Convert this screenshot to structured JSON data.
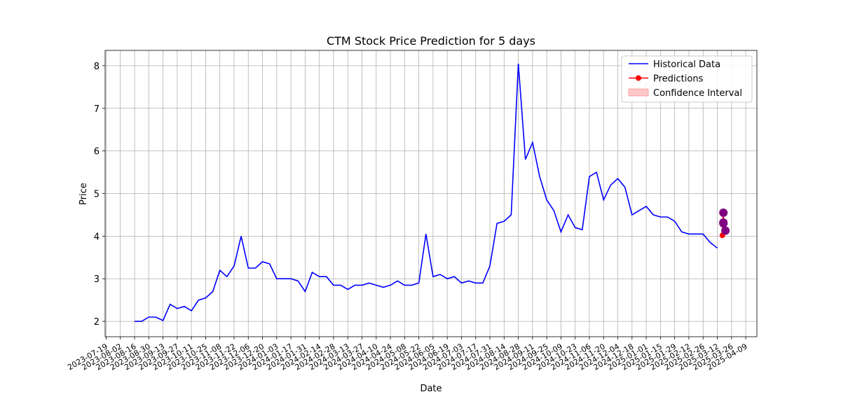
{
  "chart_data": {
    "type": "line",
    "title": "CTM Stock Price Prediction for 5 days",
    "x_label": "Date",
    "y_label": "Price",
    "xlim": [
      "2023-07-18",
      "2025-04-20"
    ],
    "xticks": [
      "2023-07-19",
      "2023-08-02",
      "2023-08-16",
      "2023-08-30",
      "2023-09-13",
      "2023-09-27",
      "2023-10-11",
      "2023-10-25",
      "2023-11-08",
      "2023-11-22",
      "2023-12-06",
      "2023-12-20",
      "2024-01-03",
      "2024-01-17",
      "2024-01-31",
      "2024-02-14",
      "2024-02-28",
      "2024-03-13",
      "2024-03-27",
      "2024-04-10",
      "2024-04-24",
      "2024-05-08",
      "2024-05-22",
      "2024-06-05",
      "2024-06-19",
      "2024-07-03",
      "2024-07-17",
      "2024-07-31",
      "2024-08-14",
      "2024-08-28",
      "2024-09-11",
      "2024-09-25",
      "2024-10-09",
      "2024-10-23",
      "2024-11-06",
      "2024-11-20",
      "2024-12-04",
      "2024-12-18",
      "2025-01-01",
      "2025-01-15",
      "2025-01-29",
      "2025-02-12",
      "2025-02-26",
      "2025-03-12",
      "2025-03-26",
      "2025-04-09"
    ],
    "ylim": [
      1.64,
      8.36
    ],
    "yticks": [
      2,
      3,
      4,
      5,
      6,
      7,
      8
    ],
    "grid": true,
    "legend": "upper right",
    "series": [
      {
        "name": "Historical Data",
        "color": "#0000ff",
        "x": [
          "2023-08-16",
          "2023-08-23",
          "2023-08-30",
          "2023-09-06",
          "2023-09-13",
          "2023-09-20",
          "2023-09-27",
          "2023-10-04",
          "2023-10-11",
          "2023-10-18",
          "2023-10-25",
          "2023-11-01",
          "2023-11-08",
          "2023-11-15",
          "2023-11-22",
          "2023-11-29",
          "2023-12-06",
          "2023-12-13",
          "2023-12-20",
          "2023-12-27",
          "2024-01-03",
          "2024-01-10",
          "2024-01-17",
          "2024-01-24",
          "2024-01-31",
          "2024-02-07",
          "2024-02-14",
          "2024-02-21",
          "2024-02-28",
          "2024-03-06",
          "2024-03-13",
          "2024-03-20",
          "2024-03-27",
          "2024-04-03",
          "2024-04-10",
          "2024-04-17",
          "2024-04-24",
          "2024-05-01",
          "2024-05-08",
          "2024-05-15",
          "2024-05-22",
          "2024-05-29",
          "2024-06-05",
          "2024-06-12",
          "2024-06-19",
          "2024-06-26",
          "2024-07-03",
          "2024-07-10",
          "2024-07-17",
          "2024-07-24",
          "2024-07-31",
          "2024-08-07",
          "2024-08-14",
          "2024-08-21",
          "2024-08-28",
          "2024-09-04",
          "2024-09-11",
          "2024-09-18",
          "2024-09-25",
          "2024-10-02",
          "2024-10-09",
          "2024-10-16",
          "2024-10-23",
          "2024-10-30",
          "2024-11-06",
          "2024-11-13",
          "2024-11-20",
          "2024-11-27",
          "2024-12-04",
          "2024-12-11",
          "2024-12-18",
          "2024-12-25",
          "2025-01-01",
          "2025-01-08",
          "2025-01-15",
          "2025-01-22",
          "2025-01-29",
          "2025-02-05",
          "2025-02-12",
          "2025-02-19",
          "2025-02-26",
          "2025-03-05",
          "2025-03-12"
        ],
        "values": [
          2.0,
          2.0,
          2.1,
          2.1,
          2.02,
          2.4,
          2.3,
          2.35,
          2.25,
          2.5,
          2.55,
          2.7,
          3.2,
          3.05,
          3.3,
          4.0,
          3.25,
          3.25,
          3.4,
          3.35,
          3.0,
          3.0,
          3.0,
          2.95,
          2.7,
          3.15,
          3.05,
          3.05,
          2.85,
          2.85,
          2.75,
          2.85,
          2.85,
          2.9,
          2.85,
          2.8,
          2.85,
          2.95,
          2.85,
          2.85,
          2.9,
          4.05,
          3.05,
          3.1,
          3.0,
          3.05,
          2.9,
          2.95,
          2.9,
          2.9,
          3.3,
          4.3,
          4.35,
          4.5,
          8.05,
          5.8,
          6.2,
          5.4,
          4.85,
          4.6,
          4.1,
          4.5,
          4.2,
          4.15,
          5.4,
          5.5,
          4.85,
          5.2,
          5.35,
          5.15,
          4.5,
          4.6,
          4.7,
          4.5,
          4.45,
          4.45,
          4.35,
          4.1,
          4.05,
          4.05,
          4.05,
          3.85,
          3.72
        ]
      },
      {
        "name": "Predictions",
        "color": "#ff0000",
        "x": [
          "2025-03-17",
          "2025-03-18",
          "2025-03-18",
          "2025-03-18",
          "2025-03-20"
        ],
        "values": [
          4.02,
          4.55,
          4.32,
          4.3,
          4.13
        ],
        "marker_colors": [
          "#ff0000",
          "#800080",
          "#800080",
          "#800080",
          "#800080"
        ]
      }
    ],
    "confidence_interval": {
      "name": "Confidence Interval",
      "color": "#ffc8c8"
    }
  }
}
